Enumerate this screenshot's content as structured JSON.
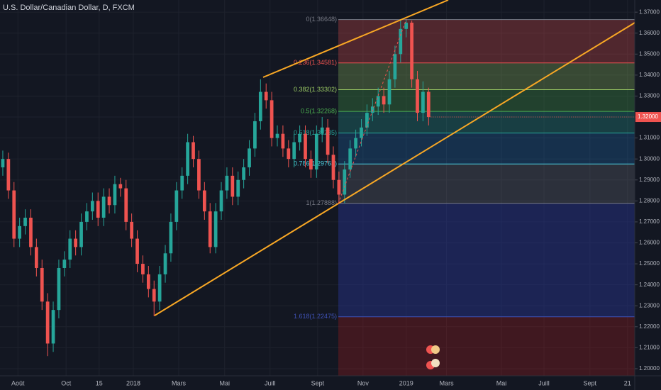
{
  "chart_data": {
    "type": "candlestick",
    "title": "U.S. Dollar/Canadian Dollar, D, FXCM",
    "up_color": "#26a69a",
    "down_color": "#ef5350",
    "open": [
      1.296,
      1.3,
      1.285,
      1.262,
      1.268,
      1.272,
      1.258,
      1.248,
      1.232,
      1.212,
      1.228,
      1.248,
      1.252,
      1.262,
      1.258,
      1.27,
      1.275,
      1.28,
      1.272,
      1.282,
      1.278,
      1.288,
      1.286,
      1.27,
      1.262,
      1.25,
      1.245,
      1.238,
      1.232,
      1.245,
      1.255,
      1.27,
      1.285,
      1.292,
      1.308,
      1.3,
      1.285,
      1.275,
      1.258,
      1.275,
      1.285,
      1.292,
      1.282,
      1.29,
      1.296,
      1.305,
      1.318,
      1.332,
      1.328,
      1.31,
      1.312,
      1.305,
      1.3,
      1.308,
      1.312,
      1.3,
      1.295,
      1.312,
      1.315,
      1.302,
      1.29,
      1.283,
      1.295,
      1.305,
      1.31,
      1.315,
      1.322,
      1.325,
      1.33,
      1.326,
      1.338,
      1.35,
      1.362,
      1.365,
      1.338,
      1.322,
      1.332
    ],
    "high": [
      1.304,
      1.303,
      1.289,
      1.272,
      1.276,
      1.276,
      1.262,
      1.252,
      1.236,
      1.232,
      1.252,
      1.256,
      1.266,
      1.266,
      1.274,
      1.279,
      1.284,
      1.284,
      1.286,
      1.286,
      1.292,
      1.291,
      1.29,
      1.274,
      1.266,
      1.254,
      1.249,
      1.242,
      1.249,
      1.259,
      1.274,
      1.289,
      1.296,
      1.312,
      1.311,
      1.304,
      1.289,
      1.279,
      1.279,
      1.289,
      1.296,
      1.296,
      1.294,
      1.3,
      1.309,
      1.322,
      1.338,
      1.336,
      1.332,
      1.316,
      1.316,
      1.309,
      1.312,
      1.316,
      1.316,
      1.304,
      1.316,
      1.32,
      1.319,
      1.306,
      1.294,
      1.299,
      1.309,
      1.314,
      1.319,
      1.326,
      1.329,
      1.334,
      1.334,
      1.342,
      1.354,
      1.366,
      1.3665,
      1.366,
      1.342,
      1.337,
      1.334
    ],
    "low": [
      1.292,
      1.281,
      1.258,
      1.258,
      1.264,
      1.254,
      1.244,
      1.228,
      1.206,
      1.208,
      1.224,
      1.244,
      1.248,
      1.254,
      1.254,
      1.266,
      1.271,
      1.268,
      1.268,
      1.274,
      1.274,
      1.282,
      1.266,
      1.258,
      1.246,
      1.241,
      1.234,
      1.225,
      1.228,
      1.241,
      1.251,
      1.266,
      1.281,
      1.288,
      1.296,
      1.281,
      1.271,
      1.255,
      1.255,
      1.271,
      1.281,
      1.278,
      1.278,
      1.286,
      1.292,
      1.301,
      1.314,
      1.324,
      1.306,
      1.306,
      1.301,
      1.296,
      1.296,
      1.304,
      1.296,
      1.291,
      1.291,
      1.308,
      1.298,
      1.286,
      1.2789,
      1.279,
      1.291,
      1.301,
      1.306,
      1.311,
      1.318,
      1.321,
      1.322,
      1.322,
      1.334,
      1.346,
      1.358,
      1.334,
      1.318,
      1.318,
      1.316
    ],
    "close": [
      1.3,
      1.285,
      1.262,
      1.268,
      1.272,
      1.258,
      1.248,
      1.232,
      1.212,
      1.228,
      1.248,
      1.252,
      1.262,
      1.258,
      1.27,
      1.275,
      1.28,
      1.272,
      1.282,
      1.278,
      1.288,
      1.286,
      1.27,
      1.262,
      1.25,
      1.245,
      1.238,
      1.232,
      1.245,
      1.255,
      1.27,
      1.285,
      1.292,
      1.308,
      1.3,
      1.285,
      1.275,
      1.258,
      1.275,
      1.285,
      1.292,
      1.282,
      1.29,
      1.296,
      1.305,
      1.318,
      1.332,
      1.328,
      1.31,
      1.312,
      1.305,
      1.3,
      1.308,
      1.312,
      1.3,
      1.295,
      1.312,
      1.315,
      1.302,
      1.29,
      1.283,
      1.295,
      1.305,
      1.31,
      1.315,
      1.322,
      1.325,
      1.33,
      1.326,
      1.338,
      1.35,
      1.362,
      1.365,
      1.338,
      1.322,
      1.332,
      1.32
    ],
    "xlim": [
      -0.5,
      112.8
    ],
    "xticks": [
      {
        "value": 2.7,
        "label": "Août"
      },
      {
        "value": 11.3,
        "label": "Oct"
      },
      {
        "value": 17.2,
        "label": "15"
      },
      {
        "value": 23.3,
        "label": "2018"
      },
      {
        "value": 31.4,
        "label": "Mars"
      },
      {
        "value": 39.6,
        "label": "Mai"
      },
      {
        "value": 47.7,
        "label": "Juill"
      },
      {
        "value": 56.2,
        "label": "Sept"
      },
      {
        "value": 64.3,
        "label": "Nov"
      },
      {
        "value": 72.0,
        "label": "2019"
      },
      {
        "value": 79.2,
        "label": "Mars"
      },
      {
        "value": 89.0,
        "label": "Mai"
      },
      {
        "value": 96.6,
        "label": "Juill"
      },
      {
        "value": 104.8,
        "label": "Sept"
      },
      {
        "value": 111.5,
        "label": "21"
      }
    ],
    "ylim": [
      1.1966,
      1.3758
    ],
    "yticks": [
      {
        "value": 1.37,
        "label": "1.37000"
      },
      {
        "value": 1.36,
        "label": "1.36000"
      },
      {
        "value": 1.35,
        "label": "1.35000"
      },
      {
        "value": 1.34,
        "label": "1.34000"
      },
      {
        "value": 1.33,
        "label": "1.33000"
      },
      {
        "value": 1.32,
        "label": "1.32000"
      },
      {
        "value": 1.31,
        "label": "1.31000"
      },
      {
        "value": 1.3,
        "label": "1.30000"
      },
      {
        "value": 1.29,
        "label": "1.29000"
      },
      {
        "value": 1.28,
        "label": "1.28000"
      },
      {
        "value": 1.27,
        "label": "1.27000"
      },
      {
        "value": 1.26,
        "label": "1.26000"
      },
      {
        "value": 1.25,
        "label": "1.25000"
      },
      {
        "value": 1.24,
        "label": "1.24000"
      },
      {
        "value": 1.23,
        "label": "1.23000"
      },
      {
        "value": 1.22,
        "label": "1.22000"
      },
      {
        "value": 1.21,
        "label": "1.21000"
      },
      {
        "value": 1.2,
        "label": "1.20000"
      }
    ],
    "last_price": {
      "value": 1.32,
      "label": "1.32000"
    },
    "grid": true,
    "fib_levels": [
      {
        "value": 1.36648,
        "label": "0(1.36648)",
        "color": "#787b86",
        "fill": "rgba(239,83,80,0.28)"
      },
      {
        "value": 1.34581,
        "label": "0.236(1.34581)",
        "color": "#ef5350",
        "fill": "rgba(156,204,101,0.28)"
      },
      {
        "value": 1.33302,
        "label": "0.382(1.33302)",
        "color": "#9ccc65",
        "fill": "rgba(76,175,80,0.28)"
      },
      {
        "value": 1.32268,
        "label": "0.5(1.32268)",
        "color": "#4caf50",
        "fill": "rgba(38,166,154,0.28)"
      },
      {
        "value": 1.31235,
        "label": "0.618(1.31235)",
        "color": "#26a69a",
        "fill": "rgba(33,150,243,0.2)"
      },
      {
        "value": 1.29763,
        "label": "0.786(1.29763)",
        "color": "#4dd0e1",
        "fill": "rgba(120,123,134,0.25)"
      },
      {
        "value": 1.27888,
        "label": "1(1.27888)",
        "color": "#787b86",
        "fill": "rgba(40,53,147,0.45)"
      },
      {
        "value": 1.22475,
        "label": "1.618(1.22475)",
        "color": "#3f51b5",
        "fill": "rgba(183,28,28,0.28)"
      }
    ]
  }
}
